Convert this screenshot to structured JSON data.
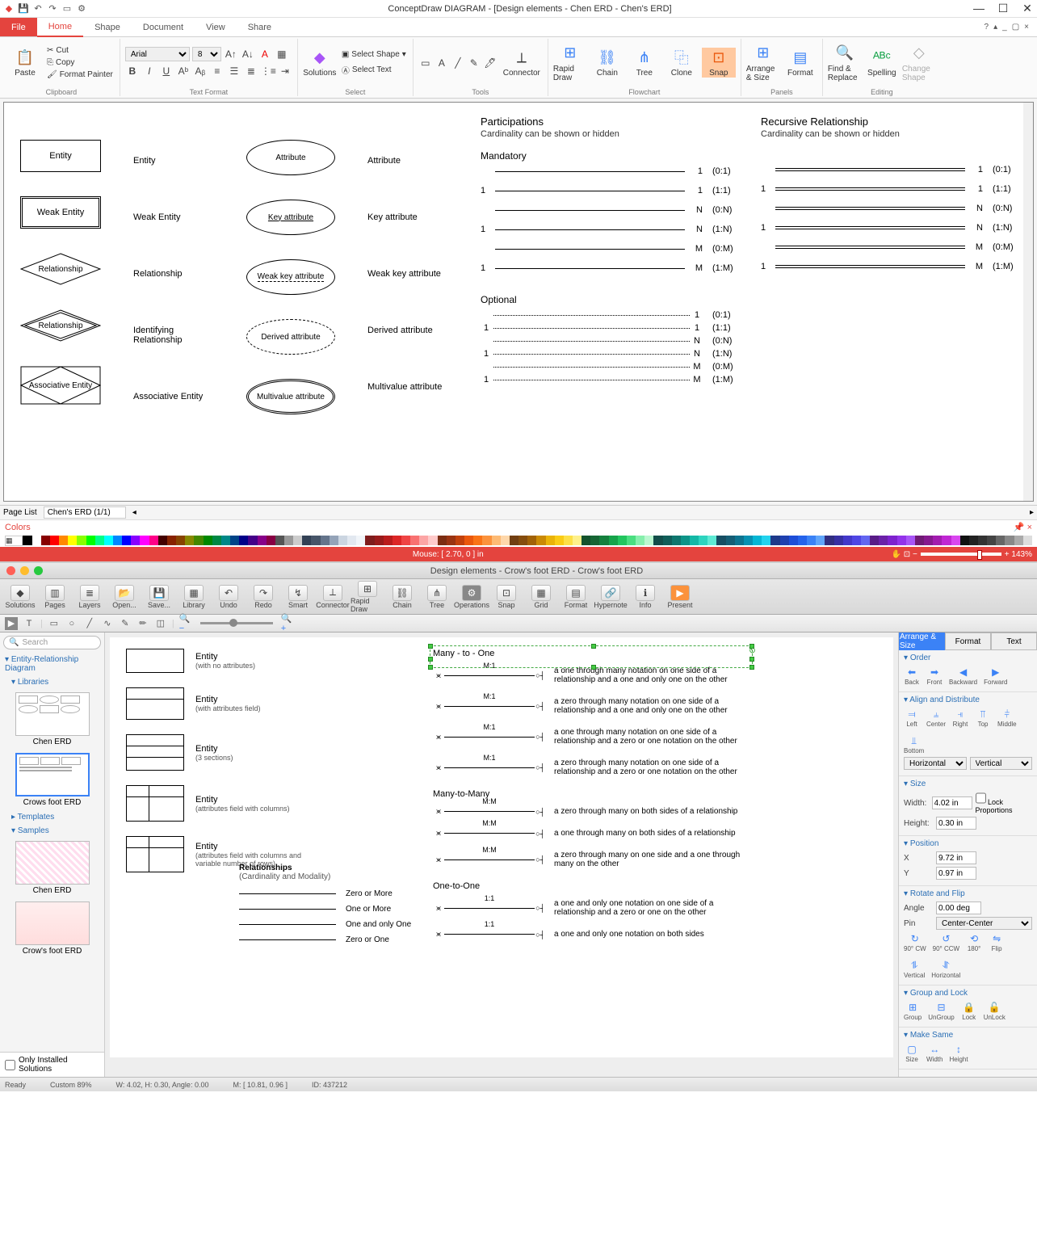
{
  "win": {
    "title": "ConceptDraw DIAGRAM - [Design elements - Chen ERD - Chen's ERD]",
    "tabs": {
      "file": "File",
      "home": "Home",
      "shape": "Shape",
      "document": "Document",
      "view": "View",
      "share": "Share"
    },
    "clipboard": {
      "paste": "Paste",
      "cut": "Cut",
      "copy": "Copy",
      "painter": "Format Painter",
      "label": "Clipboard"
    },
    "font": {
      "name": "Arial",
      "size": "8",
      "label": "Text Format"
    },
    "select": {
      "solutions": "Solutions",
      "selshape": "Select Shape",
      "seltext": "Select Text",
      "label": "Select"
    },
    "tools": {
      "text": "Text",
      "line": "Line",
      "connector": "Connector",
      "label": "Tools"
    },
    "flow": {
      "rapid": "Rapid Draw",
      "chain": "Chain",
      "tree": "Tree",
      "clone": "Clone",
      "snap": "Snap",
      "label": "Flowchart"
    },
    "panels": {
      "arrange": "Arrange & Size",
      "format": "Format",
      "label": "Panels"
    },
    "editing": {
      "find": "Find & Replace",
      "spell": "Spelling",
      "change": "Change Shape",
      "label": "Editing"
    },
    "pagelist": "Page List",
    "pagecombo": "Chen's ERD (1/1)",
    "colors": "Colors",
    "status_mouse": "Mouse: [ 2.70, 0 ] in",
    "status_zoom": "143%"
  },
  "erd": {
    "shapes": [
      {
        "txt": "Entity",
        "lbl": "Entity"
      },
      {
        "txt": "Weak Entity",
        "lbl": "Weak Entity"
      },
      {
        "txt": "Relationship",
        "lbl": "Relationship"
      },
      {
        "txt": "Relationship",
        "lbl": "Identifying Relationship"
      },
      {
        "txt": "Associative Entity",
        "lbl": "Associative Entity"
      }
    ],
    "attrs": [
      {
        "txt": "Attribute",
        "lbl": "Attribute"
      },
      {
        "txt": "Key attribute",
        "lbl": "Key attribute",
        "underline": true
      },
      {
        "txt": "Weak key attribute",
        "lbl": "Weak key attribute",
        "dashunder": true
      },
      {
        "txt": "Derived attribute",
        "lbl": "Derived attribute",
        "dashed": true
      },
      {
        "txt": "Multivalue attribute",
        "lbl": "Multivalue attribute",
        "double": true
      }
    ],
    "part_hdr": "Participations",
    "part_sub": "Cardinality can be shown or hidden",
    "rec_hdr": "Recursive Relationship",
    "rec_sub": "Cardinality can be shown or hidden",
    "mandatory": "Mandatory",
    "optional": "Optional",
    "cards": [
      {
        "l": "",
        "r": "1",
        "c": "(0:1)"
      },
      {
        "l": "1",
        "r": "1",
        "c": "(1:1)"
      },
      {
        "l": "",
        "r": "N",
        "c": "(0:N)"
      },
      {
        "l": "1",
        "r": "N",
        "c": "(1:N)"
      },
      {
        "l": "",
        "r": "M",
        "c": "(0:M)"
      },
      {
        "l": "1",
        "r": "M",
        "c": "(1:M)"
      }
    ],
    "opt": [
      {
        "l": "",
        "r": "1",
        "c": "(0:1)"
      },
      {
        "l": "1",
        "r": "1",
        "c": "(1:1)"
      },
      {
        "l": "",
        "r": "N",
        "c": "(0:N)"
      },
      {
        "l": "1",
        "r": "N",
        "c": "(1:N)"
      },
      {
        "l": "",
        "r": "M",
        "c": "(0:M)"
      },
      {
        "l": "1",
        "r": "M",
        "c": "(1:M)"
      }
    ]
  },
  "swatches": [
    "#000",
    "#fff",
    "#800",
    "#f00",
    "#f80",
    "#ff0",
    "#8f0",
    "#0f0",
    "#0f8",
    "#0ff",
    "#08f",
    "#00f",
    "#80f",
    "#f0f",
    "#f08",
    "#400",
    "#820",
    "#840",
    "#880",
    "#480",
    "#080",
    "#084",
    "#088",
    "#048",
    "#008",
    "#408",
    "#808",
    "#804",
    "#555",
    "#999",
    "#ccc",
    "#334155",
    "#475569",
    "#64748b",
    "#94a3b8",
    "#cbd5e1",
    "#e2e8f0",
    "#f1f5f9",
    "#7f1d1d",
    "#991b1b",
    "#b91c1c",
    "#dc2626",
    "#ef4444",
    "#f87171",
    "#fca5a5",
    "#fecaca",
    "#7c2d12",
    "#9a3412",
    "#c2410c",
    "#ea580c",
    "#f97316",
    "#fb923c",
    "#fdba74",
    "#fed7aa",
    "#713f12",
    "#854d0e",
    "#a16207",
    "#ca8a04",
    "#eab308",
    "#facc15",
    "#fde047",
    "#fef08a",
    "#14532d",
    "#166534",
    "#15803d",
    "#16a34a",
    "#22c55e",
    "#4ade80",
    "#86efac",
    "#bbf7d0",
    "#134e4a",
    "#115e59",
    "#0f766e",
    "#0d9488",
    "#14b8a6",
    "#2dd4bf",
    "#5eead4",
    "#164e63",
    "#155e75",
    "#0e7490",
    "#0891b2",
    "#06b6d4",
    "#22d3ee",
    "#1e3a8a",
    "#1e40af",
    "#1d4ed8",
    "#2563eb",
    "#3b82f6",
    "#60a5fa",
    "#312e81",
    "#3730a3",
    "#4338ca",
    "#4f46e5",
    "#6366f1",
    "#581c87",
    "#6b21a8",
    "#7e22ce",
    "#9333ea",
    "#a855f7",
    "#701a75",
    "#86198f",
    "#a21caf",
    "#c026d3",
    "#d946ef",
    "#111",
    "#222",
    "#333",
    "#444",
    "#666",
    "#888",
    "#aaa",
    "#ddd"
  ],
  "mac": {
    "title": "Design elements - Crow's foot ERD - Crow's foot ERD",
    "toolbar": [
      "Solutions",
      "Pages",
      "Layers",
      "Open...",
      "Save...",
      "Library",
      "Undo",
      "Redo",
      "Smart",
      "Connector",
      "Rapid Draw",
      "Chain",
      "Tree",
      "Operations",
      "Snap",
      "Grid",
      "Format",
      "Hypernote",
      "Info",
      "Present"
    ],
    "search": "Search",
    "tree_hdr": "Entity-Relationship Diagram",
    "tree_lib": "Libraries",
    "tree_tpl": "Templates",
    "tree_smp": "Samples",
    "thumbs": {
      "chen": "Chen ERD",
      "crow": "Crows foot ERD",
      "schen": "Chen ERD",
      "scrow": "Crow's foot ERD"
    },
    "installed": "Only Installed Solutions",
    "entities": [
      {
        "t": "Entity",
        "s": "(with no attributes)"
      },
      {
        "t": "Entity",
        "s": "(with attributes field)"
      },
      {
        "t": "Entity",
        "s": "(3 sections)"
      },
      {
        "t": "Entity",
        "s": "(attributes field with columns)"
      },
      {
        "t": "Entity",
        "s": "(attributes field with columns and variable number of rows)"
      }
    ],
    "rel_hdrs": {
      "m1": "Many - to - One",
      "mm": "Many-to-Many",
      "oo": "One-to-One"
    },
    "rel_sect": "Relationships",
    "rel_sect_sub": "(Cardinality and Modality)",
    "rels": [
      {
        "m": "M:1",
        "d": "a one through many notation on one side of a relationship and a one and only one on the other",
        "sel": true
      },
      {
        "m": "M:1",
        "d": "a zero through many notation on one side of a relationship and a one and only one on the other"
      },
      {
        "m": "M:1",
        "d": "a one through many notation on one side of a relationship and a zero or one notation on the other"
      },
      {
        "m": "M:1",
        "d": "a zero through many notation on one side of a relationship and a zero or one notation on the other"
      },
      {
        "m": "M:M",
        "d": "a zero through many on both sides of a relationship"
      },
      {
        "m": "M:M",
        "d": "a one through many on both sides of a relationship"
      },
      {
        "m": "M:M",
        "d": "a zero through many on one side and a one through many on the other"
      },
      {
        "m": "1:1",
        "d": "a one and only one notation on one side of a relationship and a zero or one on the other"
      },
      {
        "m": "1:1",
        "d": "a one and only one notation on both sides"
      }
    ],
    "simple_rels": [
      "Zero or More",
      "One or More",
      "One and only One",
      "Zero or One"
    ],
    "props": {
      "tabs": {
        "a": "Arrange & Size",
        "f": "Format",
        "t": "Text"
      },
      "order": "Order",
      "order_items": [
        "Back",
        "Front",
        "Backward",
        "Forward"
      ],
      "align": "Align and Distribute",
      "align_items": [
        "Left",
        "Center",
        "Right",
        "Top",
        "Middle",
        "Bottom"
      ],
      "horiz": "Horizontal",
      "vert": "Vertical",
      "size": "Size",
      "width": "Width:",
      "height": "Height:",
      "wval": "4.02 in",
      "hval": "0.30 in",
      "lock": "Lock Proportions",
      "pos": "Position",
      "x": "X",
      "y": "Y",
      "xval": "9.72 in",
      "yval": "0.97 in",
      "rot": "Rotate and Flip",
      "angle": "Angle",
      "aval": "0.00 deg",
      "pin": "Pin",
      "pval": "Center-Center",
      "rot_items": [
        "90° CW",
        "90° CCW",
        "180°",
        "Flip",
        "Vertical",
        "Horizontal"
      ],
      "grp": "Group and Lock",
      "grp_items": [
        "Group",
        "UnGroup",
        "Lock",
        "UnLock"
      ],
      "same": "Make Same",
      "same_items": [
        "Size",
        "Width",
        "Height"
      ]
    },
    "status": {
      "ready": "Ready",
      "custom": "Custom 89%",
      "wh": "W: 4.02, H: 0.30, Angle: 0.00",
      "m": "M: [ 10.81, 0.96 ]",
      "id": "ID: 437212"
    }
  }
}
